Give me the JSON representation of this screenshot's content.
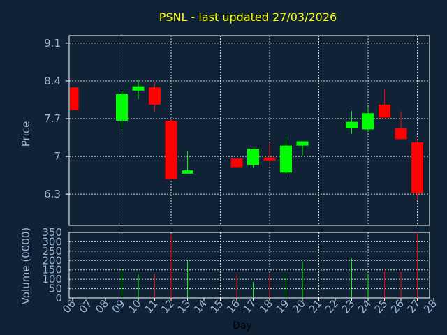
{
  "title": "PSNL - last updated 27/03/2026",
  "colors": {
    "background": "#102236",
    "plot_border": "#ffffff",
    "grid": "#ffffff",
    "text": "#9ab7d6",
    "title": "#ffff00",
    "up": "#00ff00",
    "down": "#ff0000"
  },
  "chart_data": [
    {
      "type": "candlestick",
      "ylabel": "Price",
      "yticks": [
        "6.3",
        "7",
        "7.7",
        "8.4",
        "9.1"
      ],
      "ylim": [
        5.72,
        9.24
      ],
      "grid": true,
      "candles": [
        {
          "day": "06",
          "open": 8.28,
          "high": 8.28,
          "low": 7.86,
          "close": 7.86
        },
        {
          "day": "09",
          "open": 7.66,
          "high": 8.22,
          "low": 7.5,
          "close": 8.16
        },
        {
          "day": "10",
          "open": 8.22,
          "high": 8.42,
          "low": 8.06,
          "close": 8.3
        },
        {
          "day": "11",
          "open": 8.28,
          "high": 8.38,
          "low": 7.84,
          "close": 7.96
        },
        {
          "day": "12",
          "open": 7.66,
          "high": 7.68,
          "low": 6.58,
          "close": 6.58
        },
        {
          "day": "13",
          "open": 6.68,
          "high": 7.1,
          "low": 6.68,
          "close": 6.74
        },
        {
          "day": "16",
          "open": 6.96,
          "high": 6.96,
          "low": 6.8,
          "close": 6.8
        },
        {
          "day": "17",
          "open": 6.84,
          "high": 7.14,
          "low": 6.8,
          "close": 7.14
        },
        {
          "day": "18",
          "open": 6.98,
          "high": 7.24,
          "low": 6.84,
          "close": 6.96
        },
        {
          "day": "19",
          "open": 6.7,
          "high": 7.36,
          "low": 6.66,
          "close": 7.2
        },
        {
          "day": "20",
          "open": 7.2,
          "high": 7.28,
          "low": 7.02,
          "close": 7.28
        },
        {
          "day": "23",
          "open": 7.52,
          "high": 7.84,
          "low": 7.42,
          "close": 7.64
        },
        {
          "day": "24",
          "open": 7.5,
          "high": 7.92,
          "low": 7.46,
          "close": 7.8
        },
        {
          "day": "25",
          "open": 7.96,
          "high": 8.24,
          "low": 7.72,
          "close": 7.72
        },
        {
          "day": "26",
          "open": 7.52,
          "high": 7.84,
          "low": 7.32,
          "close": 7.32
        },
        {
          "day": "27",
          "open": 7.26,
          "high": 7.32,
          "low": 6.2,
          "close": 6.32
        }
      ]
    },
    {
      "type": "bar",
      "ylabel": "Volume (0000)",
      "xlabel": "Day",
      "yticks": [
        "0",
        "50",
        "100",
        "150",
        "200",
        "250",
        "300",
        "350"
      ],
      "ylim": [
        0,
        350
      ],
      "grid": true,
      "categories": [
        "06",
        "07",
        "08",
        "09",
        "10",
        "11",
        "12",
        "13",
        "14",
        "15",
        "16",
        "17",
        "18",
        "19",
        "20",
        "21",
        "22",
        "23",
        "24",
        "25",
        "26",
        "27",
        "28"
      ],
      "bars": [
        {
          "day": "09",
          "value": 150,
          "color": "up"
        },
        {
          "day": "10",
          "value": 125,
          "color": "up"
        },
        {
          "day": "11",
          "value": 130,
          "color": "down"
        },
        {
          "day": "12",
          "value": 335,
          "color": "down"
        },
        {
          "day": "13",
          "value": 200,
          "color": "up"
        },
        {
          "day": "16",
          "value": 125,
          "color": "down"
        },
        {
          "day": "17",
          "value": 85,
          "color": "up"
        },
        {
          "day": "18",
          "value": 125,
          "color": "down"
        },
        {
          "day": "19",
          "value": 130,
          "color": "up"
        },
        {
          "day": "20",
          "value": 195,
          "color": "up"
        },
        {
          "day": "23",
          "value": 210,
          "color": "up"
        },
        {
          "day": "24",
          "value": 125,
          "color": "up"
        },
        {
          "day": "25",
          "value": 145,
          "color": "down"
        },
        {
          "day": "26",
          "value": 145,
          "color": "down"
        },
        {
          "day": "27",
          "value": 350,
          "color": "down"
        }
      ]
    }
  ]
}
